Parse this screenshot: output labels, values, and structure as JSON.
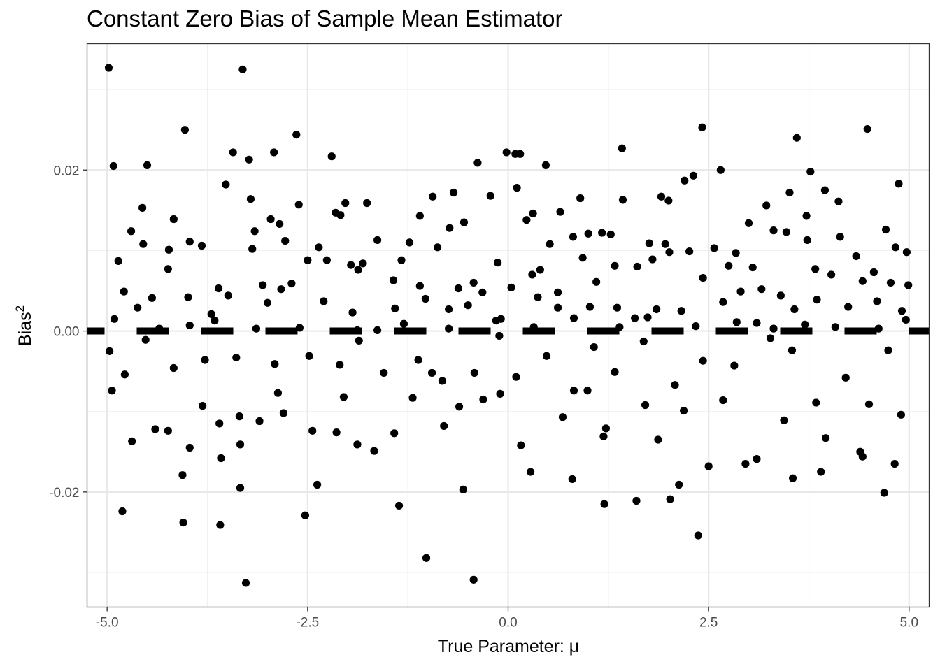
{
  "chart_data": {
    "type": "scatter",
    "title": "Constant Zero Bias of Sample Mean Estimator",
    "xlabel": "True Parameter: μ",
    "ylabel": {
      "text": "Bias",
      "superscript": "2"
    },
    "xlim": [
      -5.25,
      5.25
    ],
    "ylim": [
      -0.0343,
      0.0357
    ],
    "x_ticks": [
      -5.0,
      -2.5,
      0.0,
      2.5,
      5.0
    ],
    "x_tick_labels": [
      "-5.0",
      "-2.5",
      "0.0",
      "2.5",
      "5.0"
    ],
    "y_ticks": [
      -0.02,
      0.0,
      0.02
    ],
    "y_tick_labels": [
      "-0.02",
      "0.00",
      "0.02"
    ],
    "grid": true,
    "theme": "bw",
    "point_color": "#000000",
    "reference_line": {
      "y": 0.0,
      "style": "dashed",
      "color": "#000000"
    },
    "points": [
      [
        -4.98,
        0.0327
      ],
      [
        -3.31,
        0.0325
      ],
      [
        -4.03,
        0.025
      ],
      [
        -2.64,
        0.0244
      ],
      [
        2.42,
        0.0253
      ],
      [
        4.48,
        0.0251
      ],
      [
        3.6,
        0.024
      ],
      [
        -4.92,
        0.0205
      ],
      [
        -4.5,
        0.0206
      ],
      [
        -3.43,
        0.0222
      ],
      [
        -3.23,
        0.0213
      ],
      [
        -2.92,
        0.0222
      ],
      [
        -2.2,
        0.0217
      ],
      [
        -0.38,
        0.0209
      ],
      [
        -0.02,
        0.0222
      ],
      [
        0.09,
        0.022
      ],
      [
        0.15,
        0.022
      ],
      [
        0.47,
        0.0206
      ],
      [
        1.42,
        0.0227
      ],
      [
        2.31,
        0.0193
      ],
      [
        2.65,
        0.02
      ],
      [
        3.77,
        0.0198
      ],
      [
        3.95,
        0.0175
      ],
      [
        4.87,
        0.0183
      ],
      [
        -3.52,
        0.0182
      ],
      [
        -4.56,
        0.0153
      ],
      [
        -4.17,
        0.0139
      ],
      [
        -3.21,
        0.0164
      ],
      [
        -2.61,
        0.0157
      ],
      [
        -2.15,
        0.0147
      ],
      [
        -2.09,
        0.0144
      ],
      [
        -2.03,
        0.0159
      ],
      [
        -1.76,
        0.0159
      ],
      [
        -1.1,
        0.0143
      ],
      [
        -0.94,
        0.0167
      ],
      [
        -0.68,
        0.0172
      ],
      [
        -0.22,
        0.0168
      ],
      [
        0.11,
        0.0178
      ],
      [
        0.31,
        0.0146
      ],
      [
        0.65,
        0.0148
      ],
      [
        0.9,
        0.0165
      ],
      [
        1.43,
        0.0163
      ],
      [
        1.91,
        0.0167
      ],
      [
        2.0,
        0.0162
      ],
      [
        2.2,
        0.0187
      ],
      [
        3.22,
        0.0156
      ],
      [
        3.51,
        0.0172
      ],
      [
        3.72,
        0.0143
      ],
      [
        4.12,
        0.0161
      ],
      [
        -4.7,
        0.0124
      ],
      [
        -4.55,
        0.0108
      ],
      [
        -4.23,
        0.0101
      ],
      [
        -3.97,
        0.0111
      ],
      [
        -3.82,
        0.0106
      ],
      [
        -3.19,
        0.0102
      ],
      [
        -3.16,
        0.0124
      ],
      [
        -2.96,
        0.0139
      ],
      [
        -2.85,
        0.0133
      ],
      [
        -2.78,
        0.0112
      ],
      [
        -2.5,
        0.0088
      ],
      [
        -2.36,
        0.0104
      ],
      [
        -1.63,
        0.0113
      ],
      [
        -1.33,
        0.0088
      ],
      [
        -1.23,
        0.011
      ],
      [
        -0.88,
        0.0104
      ],
      [
        -0.73,
        0.0128
      ],
      [
        -0.55,
        0.0135
      ],
      [
        0.23,
        0.0138
      ],
      [
        0.52,
        0.0108
      ],
      [
        0.81,
        0.0117
      ],
      [
        1.0,
        0.0121
      ],
      [
        1.17,
        0.0122
      ],
      [
        1.28,
        0.012
      ],
      [
        1.76,
        0.0109
      ],
      [
        1.96,
        0.0108
      ],
      [
        2.26,
        0.0099
      ],
      [
        2.57,
        0.0103
      ],
      [
        2.84,
        0.0097
      ],
      [
        3.0,
        0.0134
      ],
      [
        3.31,
        0.0125
      ],
      [
        3.47,
        0.0123
      ],
      [
        3.73,
        0.0113
      ],
      [
        4.14,
        0.0117
      ],
      [
        4.34,
        0.0093
      ],
      [
        4.71,
        0.0126
      ],
      [
        4.83,
        0.0104
      ],
      [
        4.97,
        0.0098
      ],
      [
        -4.86,
        0.0087
      ],
      [
        -4.24,
        0.0077
      ],
      [
        -3.61,
        0.0053
      ],
      [
        -3.06,
        0.0057
      ],
      [
        -2.7,
        0.0059
      ],
      [
        -2.26,
        0.0088
      ],
      [
        -1.96,
        0.0082
      ],
      [
        -1.87,
        0.0076
      ],
      [
        -1.81,
        0.0084
      ],
      [
        -1.43,
        0.0063
      ],
      [
        -1.1,
        0.0056
      ],
      [
        -0.62,
        0.0053
      ],
      [
        -0.43,
        0.006
      ],
      [
        -0.13,
        0.0085
      ],
      [
        0.3,
        0.007
      ],
      [
        0.4,
        0.0076
      ],
      [
        0.62,
        0.0048
      ],
      [
        0.93,
        0.0091
      ],
      [
        1.1,
        0.0061
      ],
      [
        1.33,
        0.0081
      ],
      [
        1.61,
        0.008
      ],
      [
        1.8,
        0.0089
      ],
      [
        2.01,
        0.0098
      ],
      [
        2.43,
        0.0066
      ],
      [
        2.75,
        0.0081
      ],
      [
        2.9,
        0.0049
      ],
      [
        3.05,
        0.0079
      ],
      [
        3.16,
        0.0052
      ],
      [
        3.4,
        0.0044
      ],
      [
        3.83,
        0.0077
      ],
      [
        4.03,
        0.007
      ],
      [
        4.42,
        0.0062
      ],
      [
        4.56,
        0.0073
      ],
      [
        4.77,
        0.006
      ],
      [
        4.99,
        0.0057
      ],
      [
        -4.79,
        0.0049
      ],
      [
        -4.44,
        0.0041
      ],
      [
        -3.99,
        0.0042
      ],
      [
        -3.7,
        0.0021
      ],
      [
        -3.49,
        0.0044
      ],
      [
        -3.0,
        0.0035
      ],
      [
        -2.83,
        0.0052
      ],
      [
        -2.3,
        0.0037
      ],
      [
        -1.94,
        0.0023
      ],
      [
        -1.63,
        0.0001
      ],
      [
        -1.41,
        0.0028
      ],
      [
        -1.03,
        0.004
      ],
      [
        -0.74,
        0.0027
      ],
      [
        -0.5,
        0.0032
      ],
      [
        -0.32,
        0.0048
      ],
      [
        -0.15,
        0.0013
      ],
      [
        0.04,
        0.0054
      ],
      [
        0.37,
        0.0042
      ],
      [
        0.62,
        0.0029
      ],
      [
        1.02,
        0.003
      ],
      [
        1.36,
        0.0029
      ],
      [
        1.58,
        0.0016
      ],
      [
        1.85,
        0.0027
      ],
      [
        2.16,
        0.0025
      ],
      [
        2.68,
        0.0036
      ],
      [
        3.1,
        0.001
      ],
      [
        3.57,
        0.0027
      ],
      [
        3.85,
        0.0039
      ],
      [
        4.24,
        0.003
      ],
      [
        4.6,
        0.0037
      ],
      [
        4.91,
        0.0025
      ],
      [
        -4.91,
        0.0015
      ],
      [
        -4.62,
        0.0029
      ],
      [
        -4.35,
        0.0003
      ],
      [
        -3.97,
        0.0007
      ],
      [
        -3.66,
        0.0013
      ],
      [
        -3.14,
        0.0003
      ],
      [
        -2.6,
        0.0004
      ],
      [
        -1.88,
        0.0001
      ],
      [
        -1.3,
        0.0009
      ],
      [
        -0.74,
        0.0003
      ],
      [
        -0.09,
        0.0015
      ],
      [
        0.32,
        0.0005
      ],
      [
        0.82,
        0.0016
      ],
      [
        1.39,
        0.0005
      ],
      [
        1.74,
        0.0017
      ],
      [
        2.34,
        0.0006
      ],
      [
        2.85,
        0.0011
      ],
      [
        3.31,
        0.0003
      ],
      [
        3.7,
        0.0008
      ],
      [
        4.08,
        0.0005
      ],
      [
        4.62,
        0.0003
      ],
      [
        4.96,
        0.0014
      ],
      [
        -4.97,
        -0.0025
      ],
      [
        -4.52,
        -0.0011
      ],
      [
        -4.17,
        -0.0046
      ],
      [
        -3.78,
        -0.0036
      ],
      [
        -3.39,
        -0.0033
      ],
      [
        -2.91,
        -0.0041
      ],
      [
        -2.48,
        -0.0031
      ],
      [
        -2.1,
        -0.0042
      ],
      [
        -1.86,
        -0.0012
      ],
      [
        -1.55,
        -0.0052
      ],
      [
        -1.12,
        -0.0036
      ],
      [
        -0.82,
        -0.0062
      ],
      [
        -0.42,
        -0.0052
      ],
      [
        -0.11,
        -0.0006
      ],
      [
        0.1,
        -0.0057
      ],
      [
        0.48,
        -0.0031
      ],
      [
        0.82,
        -0.0074
      ],
      [
        1.07,
        -0.002
      ],
      [
        1.33,
        -0.0051
      ],
      [
        1.69,
        -0.0013
      ],
      [
        2.08,
        -0.0067
      ],
      [
        2.43,
        -0.0037
      ],
      [
        2.82,
        -0.0043
      ],
      [
        3.27,
        -0.0009
      ],
      [
        3.54,
        -0.0024
      ],
      [
        3.84,
        -0.0089
      ],
      [
        4.21,
        -0.0058
      ],
      [
        4.5,
        -0.0091
      ],
      [
        4.74,
        -0.0024
      ],
      [
        4.9,
        -0.0104
      ],
      [
        -4.94,
        -0.0074
      ],
      [
        -4.78,
        -0.0054
      ],
      [
        -4.4,
        -0.0122
      ],
      [
        -4.06,
        -0.0179
      ],
      [
        -3.81,
        -0.0093
      ],
      [
        -3.6,
        -0.0115
      ],
      [
        -3.35,
        -0.0106
      ],
      [
        -2.8,
        -0.0102
      ],
      [
        -2.44,
        -0.0124
      ],
      [
        -2.14,
        -0.0126
      ],
      [
        -1.88,
        -0.0141
      ],
      [
        -1.42,
        -0.0127
      ],
      [
        -0.95,
        -0.0052
      ],
      [
        -0.61,
        -0.0094
      ],
      [
        -0.1,
        -0.0078
      ],
      [
        0.16,
        -0.0142
      ],
      [
        0.68,
        -0.0107
      ],
      [
        0.99,
        -0.0074
      ],
      [
        1.19,
        -0.0131
      ],
      [
        1.71,
        -0.0092
      ],
      [
        2.19,
        -0.0099
      ],
      [
        2.68,
        -0.0086
      ],
      [
        3.1,
        -0.0159
      ],
      [
        3.55,
        -0.0183
      ],
      [
        3.96,
        -0.0133
      ],
      [
        4.42,
        -0.0156
      ],
      [
        -4.69,
        -0.0137
      ],
      [
        -4.24,
        -0.0124
      ],
      [
        -3.97,
        -0.0145
      ],
      [
        -3.58,
        -0.0158
      ],
      [
        -3.34,
        -0.0141
      ],
      [
        -3.1,
        -0.0112
      ],
      [
        -2.87,
        -0.0077
      ],
      [
        -2.38,
        -0.0191
      ],
      [
        -2.05,
        -0.0082
      ],
      [
        -1.67,
        -0.0149
      ],
      [
        -1.19,
        -0.0083
      ],
      [
        -0.8,
        -0.0118
      ],
      [
        -0.31,
        -0.0085
      ],
      [
        0.28,
        -0.0175
      ],
      [
        0.8,
        -0.0184
      ],
      [
        1.22,
        -0.0121
      ],
      [
        1.87,
        -0.0135
      ],
      [
        2.13,
        -0.0191
      ],
      [
        2.5,
        -0.0168
      ],
      [
        2.96,
        -0.0165
      ],
      [
        3.44,
        -0.0111
      ],
      [
        3.9,
        -0.0175
      ],
      [
        4.39,
        -0.015
      ],
      [
        4.82,
        -0.0165
      ],
      [
        -4.81,
        -0.0224
      ],
      [
        -4.05,
        -0.0238
      ],
      [
        -3.59,
        -0.0241
      ],
      [
        -3.34,
        -0.0195
      ],
      [
        -3.27,
        -0.0313
      ],
      [
        -2.53,
        -0.0229
      ],
      [
        -1.36,
        -0.0217
      ],
      [
        -1.02,
        -0.0282
      ],
      [
        -0.56,
        -0.0197
      ],
      [
        -0.43,
        -0.0309
      ],
      [
        1.2,
        -0.0215
      ],
      [
        1.6,
        -0.0211
      ],
      [
        2.02,
        -0.0209
      ],
      [
        2.37,
        -0.0254
      ],
      [
        4.69,
        -0.0201
      ]
    ]
  }
}
